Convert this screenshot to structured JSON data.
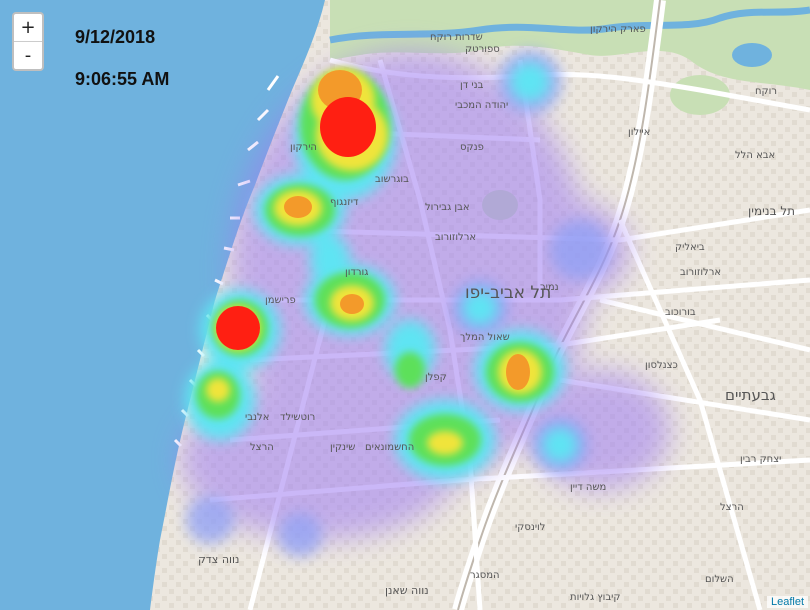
{
  "timestamp": {
    "date": "9/12/2018",
    "time": "9:06:55 AM"
  },
  "zoom": {
    "in_label": "+",
    "out_label": "-"
  },
  "attribution": "Leaflet",
  "map_labels": {
    "city": "תל אביב-יפו",
    "givatayim": "גבעתיים",
    "noga": "נווה צדק",
    "neve_shaanan": "נווה שאנן",
    "tel_binyamin": "תל בנימין",
    "dizengoff": "דיזנגוף",
    "ibn_gvirol": "אבן גבירול",
    "arlozorov": "ארלוזורוב",
    "pinkas": "פנקס",
    "namir": "נמיר",
    "shaul_hamelech": "שאול המלך",
    "kaplan": "קפלן",
    "bialik": "ביאליק",
    "herzl": "הרצל",
    "hashmonaim": "החשמונאים",
    "rothschild": "רוטשילד",
    "allenby": "אלנבי",
    "yarkon": "הירקון",
    "frishman": "פרישמן",
    "gordon": "גורדון",
    "katznelson": "כצנלסון",
    "borochov": "בורוכוב",
    "sderot_rokach": "שדרות רוקח",
    "sportek": "ספורטק",
    "bnei_dan": "בני דן",
    "yehuda_hamaccabi": "יהודה המכבי",
    "arlozorov2": "ארלוזורוב",
    "shenkin": "שינקין",
    "kibbutz_galuyot": "קיבוץ גלויות",
    "hamasger": "המסגר",
    "rokach": "רוקח",
    "aba_hillel": "אבא הלל",
    "herzl_s": "הרצל",
    "yitzhak_rabin": "יצחק רבין",
    "hashalom": "השלום",
    "moshe_dayan": "משה דיין",
    "ayalon": "איילון",
    "bugrashov": "בוגרשוב",
    "levinsky": "לוינסקי",
    "hayarkon_park": "פארק הירקון"
  },
  "heatmap_data": [
    {
      "lat": 32.098,
      "lng": 34.786,
      "intensity": 1.0
    },
    {
      "lat": 32.103,
      "lng": 34.784,
      "intensity": 0.8
    },
    {
      "lat": 32.09,
      "lng": 34.792,
      "intensity": 0.5
    },
    {
      "lat": 32.093,
      "lng": 34.803,
      "intensity": 0.45
    },
    {
      "lat": 32.086,
      "lng": 34.775,
      "intensity": 0.7
    },
    {
      "lat": 32.076,
      "lng": 34.785,
      "intensity": 0.7
    },
    {
      "lat": 32.075,
      "lng": 34.768,
      "intensity": 1.0
    },
    {
      "lat": 32.068,
      "lng": 34.769,
      "intensity": 0.6
    },
    {
      "lat": 32.07,
      "lng": 34.794,
      "intensity": 0.75
    },
    {
      "lat": 32.065,
      "lng": 34.788,
      "intensity": 0.55
    },
    {
      "lat": 32.072,
      "lng": 34.8,
      "intensity": 0.4
    },
    {
      "lat": 32.08,
      "lng": 34.804,
      "intensity": 0.45
    },
    {
      "lat": 32.063,
      "lng": 34.802,
      "intensity": 0.55
    },
    {
      "lat": 32.066,
      "lng": 34.809,
      "intensity": 0.4
    },
    {
      "lat": 32.083,
      "lng": 34.816,
      "intensity": 0.4
    },
    {
      "lat": 32.06,
      "lng": 34.79,
      "intensity": 0.3
    },
    {
      "lat": 32.055,
      "lng": 34.793,
      "intensity": 0.25
    },
    {
      "lat": 32.057,
      "lng": 34.783,
      "intensity": 0.2
    },
    {
      "lat": 32.052,
      "lng": 34.772,
      "intensity": 0.2
    }
  ]
}
